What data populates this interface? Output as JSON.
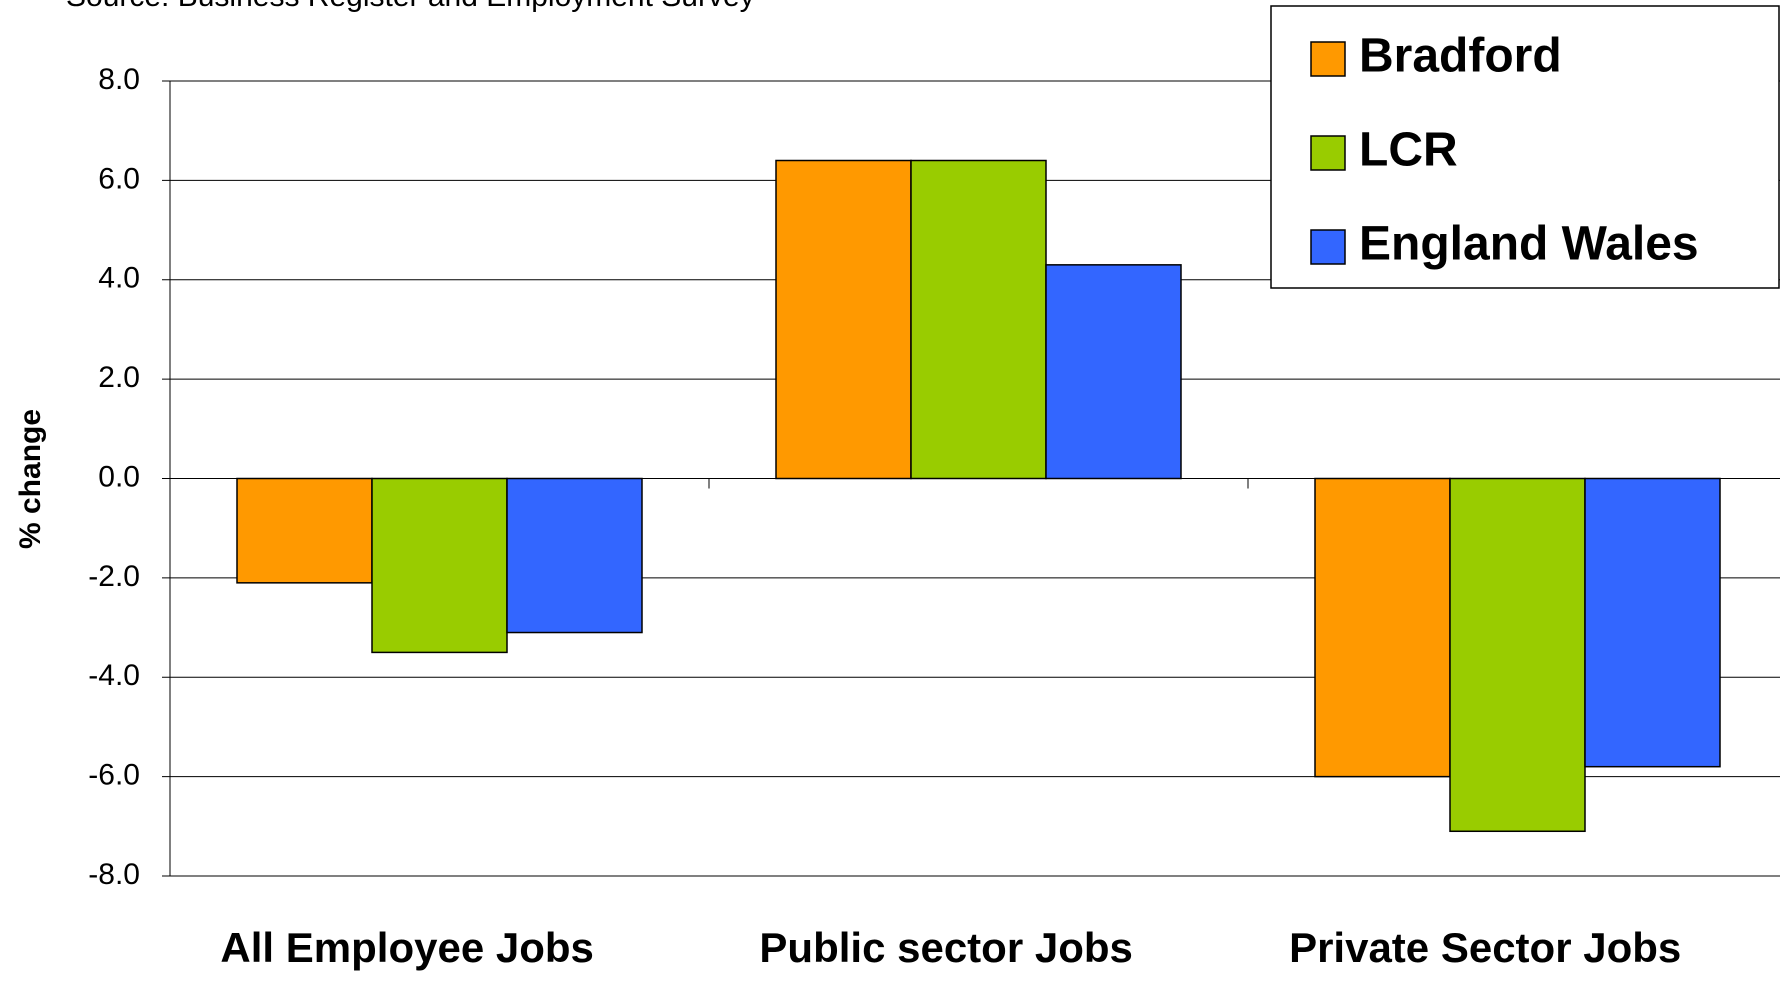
{
  "chart_data": {
    "type": "bar",
    "subtitle": "Source: Business Register and Employment Survey",
    "y_label": "% change",
    "categories": [
      "All Employee Jobs",
      "Public sector Jobs",
      "Private Sector Jobs"
    ],
    "series": [
      {
        "name": "Bradford",
        "color": "#ff9900",
        "values": [
          -2.1,
          6.4,
          -6.0
        ]
      },
      {
        "name": "LCR",
        "color": "#99cc00",
        "values": [
          -3.5,
          6.4,
          -7.1
        ]
      },
      {
        "name": "England Wales",
        "color": "#3366ff",
        "values": [
          -3.1,
          4.3,
          -5.8
        ]
      }
    ],
    "ylim": [
      -8,
      8
    ],
    "yticks": [
      {
        "value": -8,
        "label": "-8.0"
      },
      {
        "value": -6,
        "label": "-6.0"
      },
      {
        "value": -4,
        "label": "-4.0"
      },
      {
        "value": -2,
        "label": "-2.0"
      },
      {
        "value": 0,
        "label": "0.0"
      },
      {
        "value": 2,
        "label": "2.0"
      },
      {
        "value": 4,
        "label": "4.0"
      },
      {
        "value": 6,
        "label": "6.0"
      },
      {
        "value": 8,
        "label": "8.0"
      }
    ],
    "grid": true,
    "legend": "top-right"
  }
}
